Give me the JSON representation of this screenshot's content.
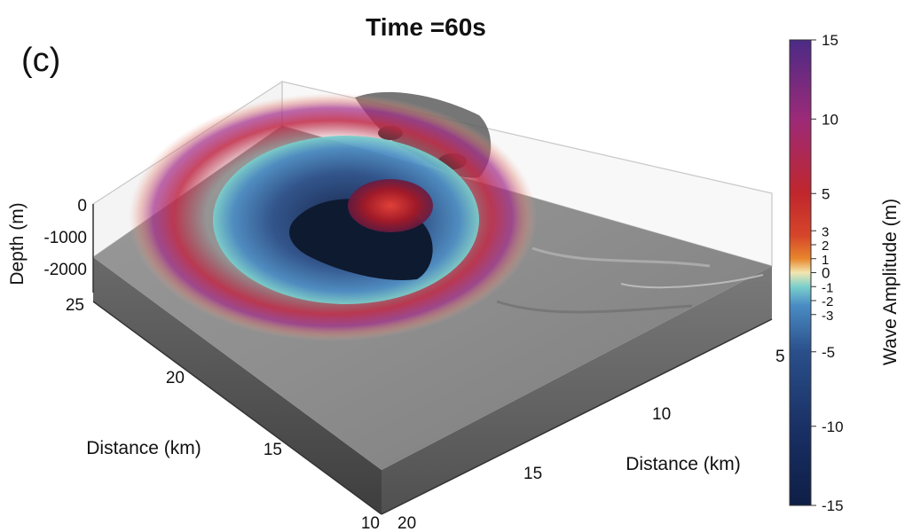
{
  "panel_label": "(c)",
  "chart_data": {
    "type": "surface",
    "title": "Time =60s",
    "depth_axis": {
      "label": "Depth (m)",
      "ticks": [
        0,
        -1000,
        -2000
      ],
      "range": [
        -2000,
        0
      ]
    },
    "y_axis": {
      "label": "Distance (km)",
      "ticks": [
        25,
        20,
        15,
        10
      ],
      "range": [
        10,
        25
      ]
    },
    "x_axis": {
      "label": "Distance (km)",
      "ticks": [
        20,
        15,
        10,
        5
      ],
      "range": [
        5,
        20
      ]
    },
    "colorbar": {
      "label": "Wave Amplitude (m)",
      "range": [
        -15,
        15
      ],
      "ticks": [
        15,
        10,
        5,
        3,
        2,
        1,
        0,
        -1,
        -2,
        -3,
        -5,
        -10,
        -15
      ],
      "colors": {
        "max": "#4b2a86",
        "high": "#9c2a78",
        "mid_high": "#c0262c",
        "low_pos": "#e8862c",
        "zero": "#f2e6b0",
        "near_zero_neg": "#7ad0cc",
        "low_neg": "#4a8cc4",
        "mid_neg": "#2a4f8a",
        "min": "#0e1e46"
      }
    },
    "grid": true
  }
}
